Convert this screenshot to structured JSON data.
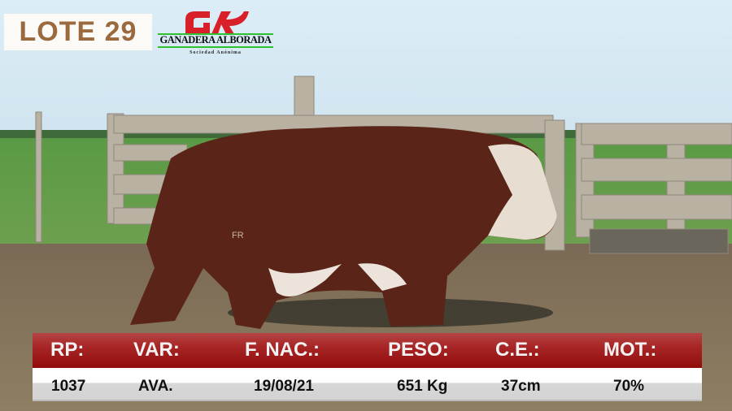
{
  "lot": {
    "label": "LOTE 29"
  },
  "logo": {
    "name": "GANADERA ALBORADA",
    "subtitle": "Sociedad Anónima",
    "colors": {
      "mark": "#d8202a",
      "line": "#2fc02f"
    }
  },
  "info_panel": {
    "headers": [
      "RP:",
      "VAR:",
      "F. NAC.:",
      "PESO:",
      "C.E.:",
      "MOT.:"
    ],
    "values": [
      "1037",
      "AVA.",
      "19/08/21",
      "651 Kg",
      "37cm",
      "70%"
    ],
    "colors": {
      "header_bg": "#a21a1a",
      "header_text": "#f2f2f2",
      "value_bg": "#ffffff",
      "value_text": "#111111"
    }
  },
  "brand": {
    "text": "FR"
  }
}
